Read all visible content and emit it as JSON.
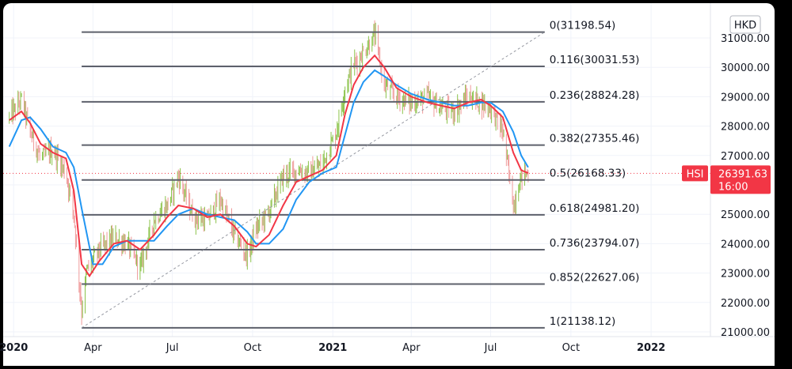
{
  "chart_data": {
    "type": "line",
    "symbol": "HSI",
    "currency": "HKD",
    "last_price": "26391.63",
    "last_time": "16:00",
    "ylim": [
      20900,
      31600
    ],
    "y_ticks": [
      "31000.00",
      "30000.00",
      "29000.00",
      "28000.00",
      "27000.00",
      "26000.00",
      "25000.00",
      "24000.00",
      "23000.00",
      "22000.00",
      "21000.00"
    ],
    "y_tick_values": [
      31000,
      30000,
      29000,
      28000,
      27000,
      26000,
      25000,
      24000,
      23000,
      22000,
      21000
    ],
    "x_range": [
      "2019-12-20",
      "2022-03-10"
    ],
    "x_ticks": [
      {
        "label": "2020",
        "date": "2020-01-01",
        "bold": true
      },
      {
        "label": "Apr",
        "date": "2020-04-01",
        "bold": false
      },
      {
        "label": "Jul",
        "date": "2020-07-01",
        "bold": false
      },
      {
        "label": "Oct",
        "date": "2020-10-01",
        "bold": false
      },
      {
        "label": "2021",
        "date": "2021-01-01",
        "bold": true
      },
      {
        "label": "Apr",
        "date": "2021-04-01",
        "bold": false
      },
      {
        "label": "Jul",
        "date": "2021-07-01",
        "bold": false
      },
      {
        "label": "Oct",
        "date": "2021-10-01",
        "bold": false
      },
      {
        "label": "2022",
        "date": "2022-01-01",
        "bold": true
      }
    ],
    "fib_levels": [
      {
        "label": "0(31198.54)",
        "value": 31198.54
      },
      {
        "label": "0.116(30031.53)",
        "value": 30031.53
      },
      {
        "label": "0.236(28824.28)",
        "value": 28824.28
      },
      {
        "label": "0.382(27355.46)",
        "value": 27355.46
      },
      {
        "label": "0.5(26168.33)",
        "value": 26168.33
      },
      {
        "label": "0.618(24981.20)",
        "value": 24981.2
      },
      {
        "label": "0.736(23794.07)",
        "value": 23794.07
      },
      {
        "label": "0.852(22627.06)",
        "value": 22627.06
      },
      {
        "label": "1(21138.12)",
        "value": 21138.12
      }
    ],
    "fib_start": "2020-03-19",
    "fib_line_end": "2021-09-01",
    "trend_line": {
      "from": {
        "date": "2020-03-19",
        "value": 21138.12
      },
      "to": {
        "date": "2021-09-01",
        "value": 31198.54
      }
    },
    "price_series": {
      "dates": [
        "2019-12-27",
        "2020-01-10",
        "2020-01-20",
        "2020-02-01",
        "2020-02-15",
        "2020-03-01",
        "2020-03-10",
        "2020-03-19",
        "2020-03-25",
        "2020-04-08",
        "2020-04-25",
        "2020-05-10",
        "2020-05-25",
        "2020-06-10",
        "2020-06-25",
        "2020-07-08",
        "2020-07-25",
        "2020-08-10",
        "2020-08-25",
        "2020-09-10",
        "2020-09-25",
        "2020-10-05",
        "2020-10-20",
        "2020-11-05",
        "2020-11-20",
        "2020-12-05",
        "2020-12-20",
        "2021-01-05",
        "2021-01-15",
        "2021-01-25",
        "2021-02-05",
        "2021-02-18",
        "2021-03-01",
        "2021-03-15",
        "2021-04-01",
        "2021-04-20",
        "2021-05-05",
        "2021-05-20",
        "2021-06-05",
        "2021-06-20",
        "2021-07-01",
        "2021-07-15",
        "2021-07-27",
        "2021-08-05",
        "2021-08-13"
      ],
      "values": [
        28300,
        28900,
        27800,
        26900,
        27200,
        26400,
        25000,
        21700,
        23100,
        23800,
        24200,
        24000,
        23200,
        24800,
        25300,
        26300,
        24900,
        24800,
        25500,
        24300,
        23600,
        24500,
        25100,
        26300,
        26500,
        26400,
        26700,
        27800,
        29300,
        30100,
        30500,
        31100,
        29400,
        29000,
        28800,
        29000,
        28600,
        28500,
        29000,
        28800,
        28600,
        27800,
        25300,
        26300,
        26400
      ]
    },
    "ma_fast": {
      "dates": [
        "2019-12-27",
        "2020-01-10",
        "2020-01-20",
        "2020-02-01",
        "2020-02-15",
        "2020-03-01",
        "2020-03-10",
        "2020-03-19",
        "2020-03-28",
        "2020-04-08",
        "2020-04-25",
        "2020-05-10",
        "2020-05-25",
        "2020-06-10",
        "2020-06-25",
        "2020-07-08",
        "2020-07-25",
        "2020-08-10",
        "2020-08-25",
        "2020-09-10",
        "2020-09-25",
        "2020-10-05",
        "2020-10-20",
        "2020-11-05",
        "2020-11-20",
        "2020-12-05",
        "2020-12-20",
        "2021-01-05",
        "2021-01-15",
        "2021-01-25",
        "2021-02-05",
        "2021-02-18",
        "2021-03-01",
        "2021-03-15",
        "2021-04-01",
        "2021-04-20",
        "2021-05-05",
        "2021-05-20",
        "2021-06-05",
        "2021-06-20",
        "2021-07-01",
        "2021-07-15",
        "2021-07-27",
        "2021-08-05",
        "2021-08-13"
      ],
      "values": [
        28200,
        28500,
        28100,
        27400,
        27100,
        26900,
        25800,
        23300,
        22900,
        23400,
        24000,
        24100,
        23800,
        24300,
        24900,
        25300,
        25200,
        24900,
        25000,
        24600,
        24000,
        23900,
        24300,
        25300,
        26100,
        26300,
        26500,
        27000,
        28400,
        29400,
        30000,
        30400,
        30000,
        29300,
        29000,
        28800,
        28700,
        28600,
        28800,
        28900,
        28700,
        28300,
        27100,
        26500,
        26400
      ]
    },
    "ma_slow": {
      "dates": [
        "2019-12-27",
        "2020-01-10",
        "2020-01-20",
        "2020-02-01",
        "2020-02-15",
        "2020-03-01",
        "2020-03-10",
        "2020-03-19",
        "2020-04-01",
        "2020-04-12",
        "2020-04-25",
        "2020-05-10",
        "2020-05-25",
        "2020-06-10",
        "2020-06-25",
        "2020-07-08",
        "2020-07-25",
        "2020-08-10",
        "2020-08-25",
        "2020-09-10",
        "2020-09-25",
        "2020-10-05",
        "2020-10-20",
        "2020-11-05",
        "2020-11-20",
        "2020-12-05",
        "2020-12-20",
        "2021-01-05",
        "2021-01-15",
        "2021-01-25",
        "2021-02-05",
        "2021-02-18",
        "2021-03-01",
        "2021-03-15",
        "2021-04-01",
        "2021-04-20",
        "2021-05-05",
        "2021-05-20",
        "2021-06-05",
        "2021-06-20",
        "2021-07-01",
        "2021-07-15",
        "2021-07-27",
        "2021-08-05",
        "2021-08-13"
      ],
      "values": [
        27300,
        28200,
        28300,
        27900,
        27300,
        27100,
        26600,
        25200,
        23300,
        23300,
        23900,
        24100,
        24100,
        24100,
        24600,
        25000,
        25200,
        25000,
        24900,
        24800,
        24400,
        24000,
        24000,
        24500,
        25500,
        26100,
        26400,
        26600,
        27700,
        28800,
        29500,
        29900,
        29700,
        29400,
        29100,
        28900,
        28800,
        28700,
        28700,
        28800,
        28800,
        28500,
        27800,
        27000,
        26600
      ]
    }
  }
}
